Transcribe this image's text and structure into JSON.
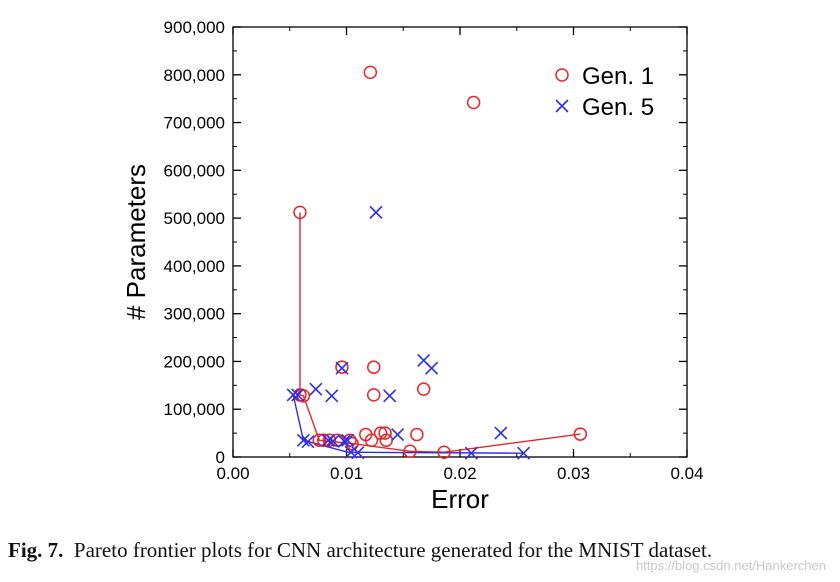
{
  "caption": {
    "label": "Fig. 7.",
    "text": "Pareto frontier plots for CNN architecture generated for the MNIST dataset."
  },
  "watermark": "https://blog.csdn.net/Hankerchen",
  "chart_data": {
    "type": "scatter",
    "xlabel": "Error",
    "ylabel": "# Parameters",
    "xlim": [
      0,
      0.04
    ],
    "ylim": [
      0,
      900000
    ],
    "x_ticks": [
      0,
      0.01,
      0.02,
      0.03,
      0.04
    ],
    "x_tick_labels": [
      "0.00",
      "0.01",
      "0.02",
      "0.03",
      "0.04"
    ],
    "y_ticks": [
      0,
      100000,
      200000,
      300000,
      400000,
      500000,
      600000,
      700000,
      800000,
      900000
    ],
    "y_tick_labels": [
      "0",
      "100,000",
      "200,000",
      "300,000",
      "400,000",
      "500,000",
      "600,000",
      "700,000",
      "800,000",
      "900,000"
    ],
    "grid": false,
    "legend_position": "top-right",
    "series": [
      {
        "name": "Gen. 1",
        "marker": "circle",
        "color": "#e8262a",
        "points": [
          [
            0.0121,
            805000
          ],
          [
            0.0212,
            742000
          ],
          [
            0.0059,
            512000
          ],
          [
            0.0096,
            188000
          ],
          [
            0.0124,
            188000
          ],
          [
            0.0168,
            142000
          ],
          [
            0.0124,
            130000
          ],
          [
            0.0059,
            130000
          ],
          [
            0.0062,
            128000
          ],
          [
            0.013,
            50000
          ],
          [
            0.0134,
            50000
          ],
          [
            0.0162,
            47000
          ],
          [
            0.0117,
            47000
          ],
          [
            0.0306,
            48000
          ],
          [
            0.0076,
            35000
          ],
          [
            0.008,
            35000
          ],
          [
            0.0085,
            35000
          ],
          [
            0.0092,
            35000
          ],
          [
            0.0103,
            35000
          ],
          [
            0.0122,
            35000
          ],
          [
            0.0135,
            35000
          ],
          [
            0.0105,
            28000
          ],
          [
            0.0156,
            12000
          ],
          [
            0.0186,
            10000
          ]
        ],
        "frontier": [
          [
            0.0059,
            512000
          ],
          [
            0.0059,
            130000
          ],
          [
            0.0062,
            128000
          ],
          [
            0.0076,
            35000
          ],
          [
            0.0105,
            28000
          ],
          [
            0.0156,
            12000
          ],
          [
            0.0186,
            10000
          ],
          [
            0.0306,
            48000
          ]
        ]
      },
      {
        "name": "Gen. 5",
        "marker": "x",
        "color": "#2e2ee8",
        "points": [
          [
            0.0126,
            512000
          ],
          [
            0.0168,
            202000
          ],
          [
            0.0175,
            186000
          ],
          [
            0.0096,
            186000
          ],
          [
            0.0073,
            142000
          ],
          [
            0.0053,
            130000
          ],
          [
            0.0057,
            130000
          ],
          [
            0.0087,
            128000
          ],
          [
            0.0138,
            128000
          ],
          [
            0.0236,
            50000
          ],
          [
            0.0145,
            47000
          ],
          [
            0.0062,
            35000
          ],
          [
            0.0066,
            32000
          ],
          [
            0.0084,
            35000
          ],
          [
            0.0088,
            33000
          ],
          [
            0.0098,
            33000
          ],
          [
            0.0101,
            35000
          ],
          [
            0.0104,
            10000
          ],
          [
            0.011,
            9000
          ],
          [
            0.021,
            8000
          ],
          [
            0.0256,
            8000
          ]
        ],
        "frontier": [
          [
            0.0053,
            130000
          ],
          [
            0.0062,
            35000
          ],
          [
            0.0101,
            10000
          ],
          [
            0.0256,
            8000
          ]
        ]
      }
    ]
  }
}
